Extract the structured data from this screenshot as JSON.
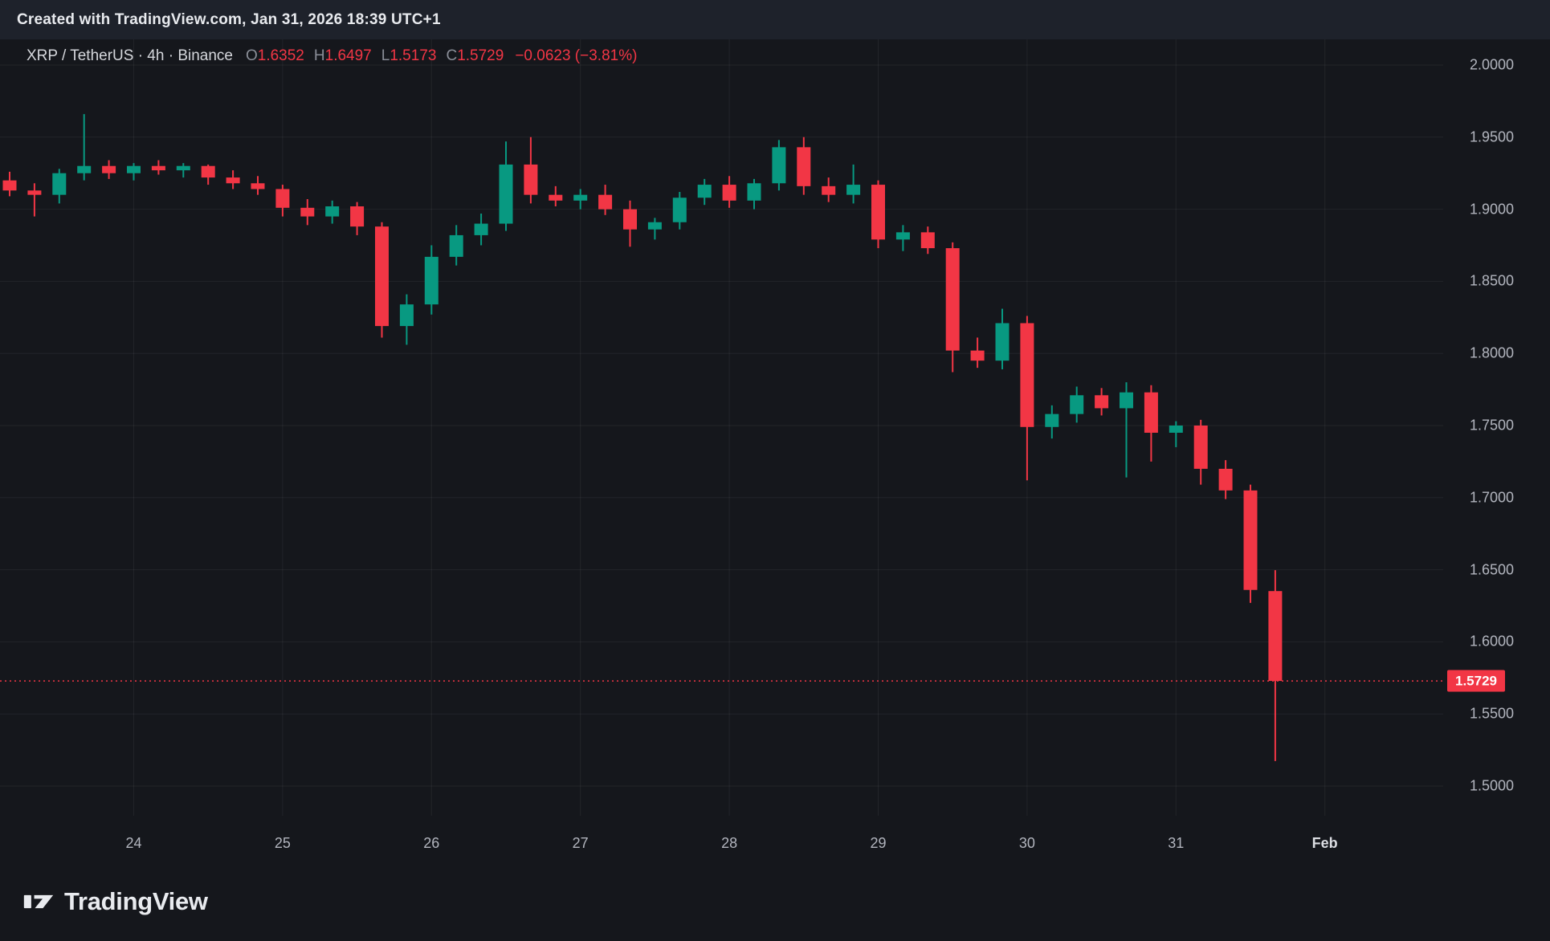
{
  "header": {
    "attribution": "Created with TradingView.com, Jan 31, 2026 18:39 UTC+1"
  },
  "legend": {
    "symbol_title": "XRP / TetherUS · 4h · Binance",
    "open_label": "O",
    "open": "1.6352",
    "high_label": "H",
    "high": "1.6497",
    "low_label": "L",
    "low": "1.5173",
    "close_label": "C",
    "close": "1.5729",
    "change": "−0.0623 (−3.81%)"
  },
  "colors": {
    "up": "#089981",
    "down": "#F23645",
    "last_price_line": "#F23645",
    "badge_bg": "#F23645",
    "badge_text": "#FFFFFF"
  },
  "price_axis": {
    "labels": [
      "2.0000",
      "1.9500",
      "1.9000",
      "1.8500",
      "1.8000",
      "1.7500",
      "1.7000",
      "1.6500",
      "1.6000",
      "1.5500",
      "1.5000"
    ],
    "last_price_label": "1.5729"
  },
  "time_axis": {
    "labels": [
      {
        "text": "24",
        "index": 5
      },
      {
        "text": "25",
        "index": 11
      },
      {
        "text": "26",
        "index": 17
      },
      {
        "text": "27",
        "index": 23
      },
      {
        "text": "28",
        "index": 29
      },
      {
        "text": "29",
        "index": 35
      },
      {
        "text": "30",
        "index": 41
      },
      {
        "text": "31",
        "index": 47
      },
      {
        "text": "Feb",
        "index": 53,
        "emphasis": true
      }
    ]
  },
  "watermark": {
    "logo_text": "TradingView"
  },
  "chart_data": {
    "type": "candlestick",
    "title": "XRP / TetherUS · 4h · Binance",
    "symbol": "XRP / TetherUS",
    "interval": "4h",
    "exchange": "Binance",
    "ylim": [
      1.5,
      2.0
    ],
    "y_tick_step": 0.05,
    "grid": true,
    "last": {
      "open": 1.6352,
      "high": 1.6497,
      "low": 1.5173,
      "close": 1.5729,
      "change": "−0.0623",
      "change_pct": "−3.81%"
    },
    "columns": [
      "time",
      "open",
      "high",
      "low",
      "close"
    ],
    "rows": [
      [
        "Jan 23 04:00",
        1.92,
        1.926,
        1.909,
        1.913
      ],
      [
        "Jan 23 08:00",
        1.913,
        1.918,
        1.895,
        1.91
      ],
      [
        "Jan 23 12:00",
        1.91,
        1.928,
        1.904,
        1.925
      ],
      [
        "Jan 23 16:00",
        1.925,
        1.966,
        1.92,
        1.93
      ],
      [
        "Jan 23 20:00",
        1.93,
        1.934,
        1.921,
        1.925
      ],
      [
        "Jan 24 00:00",
        1.925,
        1.932,
        1.92,
        1.93
      ],
      [
        "Jan 24 04:00",
        1.93,
        1.934,
        1.924,
        1.927
      ],
      [
        "Jan 24 08:00",
        1.927,
        1.932,
        1.922,
        1.93
      ],
      [
        "Jan 24 12:00",
        1.93,
        1.931,
        1.917,
        1.922
      ],
      [
        "Jan 24 16:00",
        1.922,
        1.927,
        1.914,
        1.918
      ],
      [
        "Jan 24 20:00",
        1.918,
        1.923,
        1.91,
        1.914
      ],
      [
        "Jan 25 00:00",
        1.914,
        1.917,
        1.895,
        1.901
      ],
      [
        "Jan 25 04:00",
        1.901,
        1.907,
        1.889,
        1.895
      ],
      [
        "Jan 25 08:00",
        1.895,
        1.906,
        1.89,
        1.902
      ],
      [
        "Jan 25 12:00",
        1.902,
        1.905,
        1.882,
        1.888
      ],
      [
        "Jan 25 16:00",
        1.888,
        1.891,
        1.811,
        1.819
      ],
      [
        "Jan 25 20:00",
        1.819,
        1.841,
        1.806,
        1.834
      ],
      [
        "Jan 26 00:00",
        1.834,
        1.875,
        1.827,
        1.867
      ],
      [
        "Jan 26 04:00",
        1.867,
        1.889,
        1.861,
        1.882
      ],
      [
        "Jan 26 08:00",
        1.882,
        1.897,
        1.875,
        1.89
      ],
      [
        "Jan 26 12:00",
        1.89,
        1.947,
        1.885,
        1.931
      ],
      [
        "Jan 26 16:00",
        1.931,
        1.95,
        1.904,
        1.91
      ],
      [
        "Jan 26 20:00",
        1.91,
        1.916,
        1.902,
        1.906
      ],
      [
        "Jan 27 00:00",
        1.906,
        1.914,
        1.9,
        1.91
      ],
      [
        "Jan 27 04:00",
        1.91,
        1.917,
        1.896,
        1.9
      ],
      [
        "Jan 27 08:00",
        1.9,
        1.906,
        1.874,
        1.886
      ],
      [
        "Jan 27 12:00",
        1.886,
        1.894,
        1.879,
        1.891
      ],
      [
        "Jan 27 16:00",
        1.891,
        1.912,
        1.886,
        1.908
      ],
      [
        "Jan 27 20:00",
        1.908,
        1.921,
        1.903,
        1.917
      ],
      [
        "Jan 28 00:00",
        1.917,
        1.923,
        1.901,
        1.906
      ],
      [
        "Jan 28 04:00",
        1.906,
        1.921,
        1.9,
        1.918
      ],
      [
        "Jan 28 08:00",
        1.918,
        1.948,
        1.913,
        1.943
      ],
      [
        "Jan 28 12:00",
        1.943,
        1.95,
        1.91,
        1.916
      ],
      [
        "Jan 28 16:00",
        1.916,
        1.922,
        1.905,
        1.91
      ],
      [
        "Jan 28 20:00",
        1.91,
        1.931,
        1.904,
        1.917
      ],
      [
        "Jan 29 00:00",
        1.917,
        1.92,
        1.873,
        1.879
      ],
      [
        "Jan 29 04:00",
        1.879,
        1.889,
        1.871,
        1.884
      ],
      [
        "Jan 29 08:00",
        1.884,
        1.888,
        1.869,
        1.873
      ],
      [
        "Jan 29 12:00",
        1.873,
        1.877,
        1.787,
        1.802
      ],
      [
        "Jan 29 16:00",
        1.802,
        1.811,
        1.79,
        1.795
      ],
      [
        "Jan 29 20:00",
        1.795,
        1.831,
        1.789,
        1.821
      ],
      [
        "Jan 30 00:00",
        1.821,
        1.826,
        1.712,
        1.749
      ],
      [
        "Jan 30 04:00",
        1.749,
        1.764,
        1.741,
        1.758
      ],
      [
        "Jan 30 08:00",
        1.758,
        1.777,
        1.752,
        1.771
      ],
      [
        "Jan 30 12:00",
        1.771,
        1.776,
        1.757,
        1.762
      ],
      [
        "Jan 30 16:00",
        1.762,
        1.78,
        1.714,
        1.773
      ],
      [
        "Jan 30 20:00",
        1.773,
        1.778,
        1.725,
        1.745
      ],
      [
        "Jan 31 00:00",
        1.745,
        1.753,
        1.735,
        1.75
      ],
      [
        "Jan 31 04:00",
        1.75,
        1.754,
        1.709,
        1.72
      ],
      [
        "Jan 31 08:00",
        1.72,
        1.726,
        1.699,
        1.705
      ],
      [
        "Jan 31 12:00",
        1.705,
        1.709,
        1.627,
        1.636
      ],
      [
        "Jan 31 16:00",
        1.6352,
        1.6497,
        1.5173,
        1.5729
      ]
    ]
  }
}
